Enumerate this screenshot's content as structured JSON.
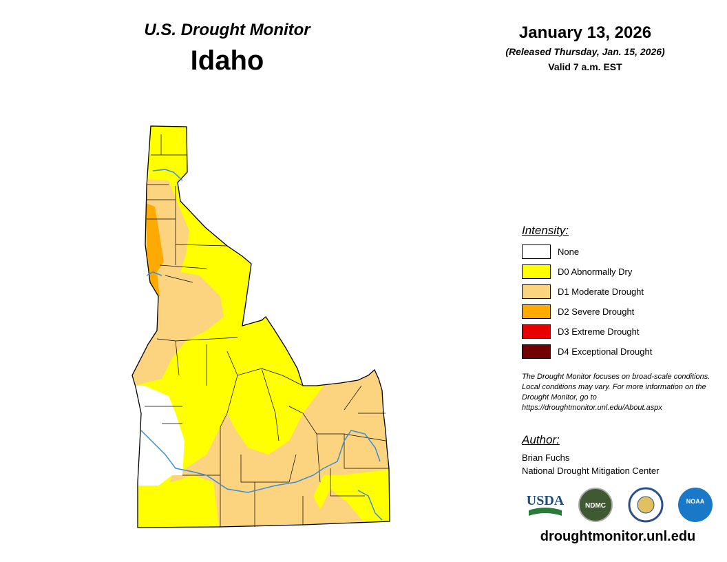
{
  "header": {
    "subtitle": "U.S. Drought Monitor",
    "title": "Idaho",
    "date": "January 13, 2026",
    "released": "(Released Thursday, Jan. 15, 2026)",
    "valid": "Valid 7 a.m. EST"
  },
  "legend": {
    "title": "Intensity:",
    "items": [
      {
        "label": "None",
        "color": "#ffffff"
      },
      {
        "label": "D0 Abnormally Dry",
        "color": "#ffff00"
      },
      {
        "label": "D1 Moderate Drought",
        "color": "#fcd37f"
      },
      {
        "label": "D2 Severe Drought",
        "color": "#ffaa00"
      },
      {
        "label": "D3 Extreme Drought",
        "color": "#e60000"
      },
      {
        "label": "D4 Exceptional Drought",
        "color": "#730000"
      }
    ]
  },
  "note": "The Drought Monitor focuses on broad-scale conditions. Local conditions may vary. For more information on the Drought Monitor, go to https://droughtmonitor.unl.edu/About.aspx",
  "author": {
    "title": "Author:",
    "name": "Brian Fuchs",
    "org": "National Drought Mitigation Center"
  },
  "logos": [
    "USDA",
    "NDMC",
    "NOAA"
  ],
  "footer": "droughtmonitor.unl.edu"
}
